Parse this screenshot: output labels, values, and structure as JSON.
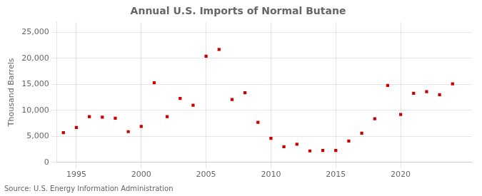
{
  "chart_data": {
    "type": "scatter",
    "title": "Annual U.S. Imports of Normal Butane",
    "ylabel": "Thousand Barrels",
    "source": "Source: U.S. Energy Information Administration",
    "x": [
      1994,
      1995,
      1996,
      1997,
      1998,
      1999,
      2000,
      2001,
      2002,
      2003,
      2004,
      2005,
      2006,
      2007,
      2008,
      2009,
      2010,
      2011,
      2012,
      2013,
      2014,
      2015,
      2016,
      2017,
      2018,
      2019,
      2020,
      2021,
      2022,
      2023,
      2024
    ],
    "values": [
      5700,
      6700,
      8800,
      8700,
      8500,
      5900,
      6900,
      15300,
      8800,
      12300,
      11000,
      20400,
      21700,
      12100,
      13400,
      7700,
      4600,
      3000,
      3500,
      2200,
      2300,
      2300,
      4100,
      5600,
      8400,
      14800,
      9200,
      13300,
      13600,
      13000,
      15100
    ],
    "color": "#cc0000",
    "marker": "square",
    "xlim": [
      1993.5,
      2025.5
    ],
    "xticks": [
      1995,
      2000,
      2005,
      2010,
      2015,
      2020
    ],
    "ylim": [
      0,
      27000
    ],
    "yticks": [
      0,
      {
        "value": 5000,
        "label": "5,000"
      },
      {
        "value": 10000,
        "label": "10,000"
      },
      {
        "value": 15000,
        "label": "15,000"
      },
      {
        "value": 20000,
        "label": "20,000"
      },
      {
        "value": 25000,
        "label": "25,000"
      }
    ],
    "grid": true
  }
}
